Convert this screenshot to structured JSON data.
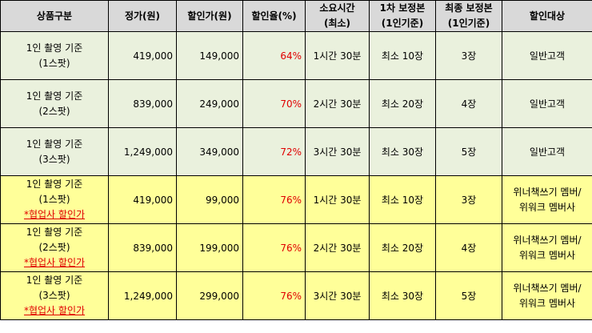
{
  "headers": {
    "product": "상품구분",
    "price": "정가(원)",
    "sale_price": "할인가(원)",
    "discount_rate": "할인율(%)",
    "duration_1": "소요시간",
    "duration_2": "(최소)",
    "first_edit_1": "1차 보정본",
    "first_edit_2": "(1인기준)",
    "final_edit_1": "최종 보정본",
    "final_edit_2": "(1인기준)",
    "target": "할인대상"
  },
  "rows": [
    {
      "product_1": "1인 촬영 기준",
      "product_2": "(1스팟)",
      "partner": "",
      "price": "419,000",
      "sale_price": "149,000",
      "rate": "64%",
      "duration": "1시간 30분",
      "first_edit": "최소 10장",
      "final_edit": "3장",
      "target_1": "일반고객",
      "target_2": ""
    },
    {
      "product_1": "1인 촬영 기준",
      "product_2": "(2스팟)",
      "partner": "",
      "price": "839,000",
      "sale_price": "249,000",
      "rate": "70%",
      "duration": "2시간 30분",
      "first_edit": "최소 20장",
      "final_edit": "4장",
      "target_1": "일반고객",
      "target_2": ""
    },
    {
      "product_1": "1인 촬영 기준",
      "product_2": "(3스팟)",
      "partner": "",
      "price": "1,249,000",
      "sale_price": "349,000",
      "rate": "72%",
      "duration": "3시간 30분",
      "first_edit": "최소 30장",
      "final_edit": "5장",
      "target_1": "일반고객",
      "target_2": ""
    },
    {
      "product_1": "1인 촬영 기준",
      "product_2": "(1스팟)",
      "partner": "*협업사 할인가",
      "price": "419,000",
      "sale_price": "99,000",
      "rate": "76%",
      "duration": "1시간 30분",
      "first_edit": "최소 10장",
      "final_edit": "3장",
      "target_1": "위너책쓰기 멤버/",
      "target_2": "위워크 멤버사"
    },
    {
      "product_1": "1인 촬영 기준",
      "product_2": "(2스팟)",
      "partner": "*협업사 할인가",
      "price": "839,000",
      "sale_price": "199,000",
      "rate": "76%",
      "duration": "2시간 30분",
      "first_edit": "최소 20장",
      "final_edit": "4장",
      "target_1": "위너책쓰기 멤버/",
      "target_2": "위워크 멤버사"
    },
    {
      "product_1": "1인 촬영 기준",
      "product_2": "(3스팟)",
      "partner": "*협업사 할인가",
      "price": "1,249,000",
      "sale_price": "299,000",
      "rate": "76%",
      "duration": "3시간 30분",
      "first_edit": "최소 30장",
      "final_edit": "5장",
      "target_1": "위너책쓰기 멤버/",
      "target_2": "위워크 멤버사"
    }
  ]
}
